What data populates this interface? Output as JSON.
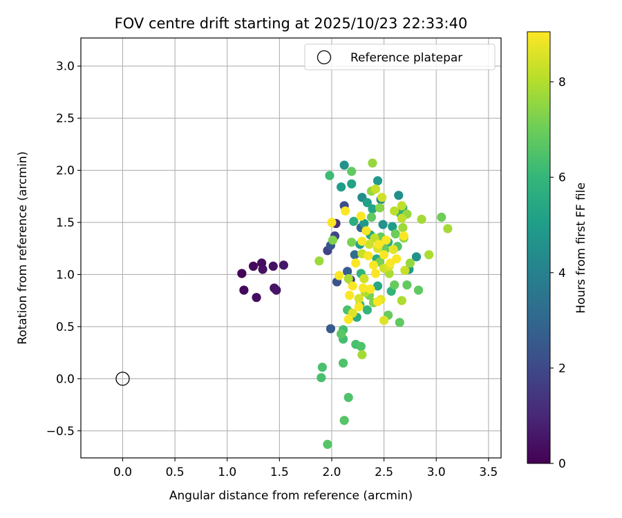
{
  "chart_data": {
    "type": "scatter",
    "title": "FOV centre drift starting at 2025/10/23 22:33:40",
    "xlabel": "Angular distance from reference (arcmin)",
    "ylabel": "Rotation from reference (arcmin)",
    "xlim": [
      -0.4,
      3.62
    ],
    "ylim": [
      -0.76,
      3.27
    ],
    "xticks": [
      0.0,
      0.5,
      1.0,
      1.5,
      2.0,
      2.5,
      3.0,
      3.5
    ],
    "xtick_labels": [
      "0.0",
      "0.5",
      "1.0",
      "1.5",
      "2.0",
      "2.5",
      "3.0",
      "3.5"
    ],
    "yticks": [
      -0.5,
      0.0,
      0.5,
      1.0,
      1.5,
      2.0,
      2.5,
      3.0
    ],
    "ytick_labels": [
      "−0.5",
      "0.0",
      "0.5",
      "1.0",
      "1.5",
      "2.0",
      "2.5",
      "3.0"
    ],
    "grid": true,
    "legend": {
      "placement": "top-right",
      "entries": [
        "Reference platepar"
      ]
    },
    "reference_point": {
      "x": 0.0,
      "y": 0.0,
      "label": "Reference platepar"
    },
    "colorbar": {
      "label": "Hours from first FF file",
      "colormap": "viridis",
      "range": [
        0,
        9.05
      ],
      "ticks": [
        0,
        2,
        4,
        6,
        8
      ],
      "tick_labels": [
        "0",
        "2",
        "4",
        "6",
        "8"
      ]
    },
    "colormap_stops": [
      "#440154",
      "#482878",
      "#3e4a89",
      "#31688e",
      "#26828e",
      "#1f9e89",
      "#35b779",
      "#6ece58",
      "#b5de2b",
      "#fde725"
    ],
    "points": [
      {
        "x": 1.14,
        "y": 1.01,
        "h": 0.1
      },
      {
        "x": 1.16,
        "y": 0.85,
        "h": 0.2
      },
      {
        "x": 1.25,
        "y": 1.08,
        "h": 0.2
      },
      {
        "x": 1.28,
        "y": 0.78,
        "h": 0.3
      },
      {
        "x": 1.33,
        "y": 1.11,
        "h": 0.3
      },
      {
        "x": 1.34,
        "y": 1.05,
        "h": 0.4
      },
      {
        "x": 1.44,
        "y": 1.08,
        "h": 0.4
      },
      {
        "x": 1.45,
        "y": 0.87,
        "h": 0.5
      },
      {
        "x": 1.47,
        "y": 0.85,
        "h": 0.5
      },
      {
        "x": 1.54,
        "y": 1.09,
        "h": 0.6
      },
      {
        "x": 1.96,
        "y": 1.23,
        "h": 1.8
      },
      {
        "x": 2.04,
        "y": 1.49,
        "h": 1.2
      },
      {
        "x": 2.03,
        "y": 1.37,
        "h": 1.9
      },
      {
        "x": 1.99,
        "y": 1.28,
        "h": 2.4
      },
      {
        "x": 1.99,
        "y": 0.48,
        "h": 2.5
      },
      {
        "x": 2.05,
        "y": 0.93,
        "h": 2.3
      },
      {
        "x": 2.12,
        "y": 1.66,
        "h": 2.1
      },
      {
        "x": 2.18,
        "y": 0.95,
        "h": 1.6
      },
      {
        "x": 2.15,
        "y": 1.03,
        "h": 2.7
      },
      {
        "x": 2.22,
        "y": 1.19,
        "h": 3.2
      },
      {
        "x": 2.28,
        "y": 1.45,
        "h": 2.8
      },
      {
        "x": 2.12,
        "y": 2.05,
        "h": 4.6
      },
      {
        "x": 2.09,
        "y": 1.84,
        "h": 5.0
      },
      {
        "x": 2.19,
        "y": 1.87,
        "h": 5.2
      },
      {
        "x": 2.29,
        "y": 1.74,
        "h": 4.4
      },
      {
        "x": 2.34,
        "y": 1.69,
        "h": 5.1
      },
      {
        "x": 2.44,
        "y": 1.9,
        "h": 4.9
      },
      {
        "x": 2.47,
        "y": 1.72,
        "h": 4.2
      },
      {
        "x": 2.39,
        "y": 1.63,
        "h": 5.3
      },
      {
        "x": 2.21,
        "y": 1.51,
        "h": 5.6
      },
      {
        "x": 2.31,
        "y": 1.49,
        "h": 4.8
      },
      {
        "x": 2.49,
        "y": 1.48,
        "h": 4.6
      },
      {
        "x": 2.58,
        "y": 1.46,
        "h": 5.0
      },
      {
        "x": 2.64,
        "y": 1.76,
        "h": 4.5
      },
      {
        "x": 2.68,
        "y": 1.64,
        "h": 5.7
      },
      {
        "x": 2.37,
        "y": 1.38,
        "h": 5.4
      },
      {
        "x": 2.54,
        "y": 1.31,
        "h": 5.8
      },
      {
        "x": 2.66,
        "y": 1.58,
        "h": 5.6
      },
      {
        "x": 2.81,
        "y": 1.17,
        "h": 4.6
      },
      {
        "x": 2.74,
        "y": 1.05,
        "h": 5.0
      },
      {
        "x": 2.28,
        "y": 1.01,
        "h": 5.9
      },
      {
        "x": 2.44,
        "y": 0.89,
        "h": 5.4
      },
      {
        "x": 2.57,
        "y": 0.84,
        "h": 5.9
      },
      {
        "x": 2.34,
        "y": 0.66,
        "h": 5.9
      },
      {
        "x": 2.24,
        "y": 0.59,
        "h": 5.6
      },
      {
        "x": 2.27,
        "y": 0.71,
        "h": 6.1
      },
      {
        "x": 2.27,
        "y": 1.29,
        "h": 5.1
      },
      {
        "x": 2.43,
        "y": 1.15,
        "h": 5.5
      },
      {
        "x": 1.98,
        "y": 1.95,
        "h": 6.2
      },
      {
        "x": 2.19,
        "y": 1.99,
        "h": 6.8
      },
      {
        "x": 2.15,
        "y": 0.66,
        "h": 6.4
      },
      {
        "x": 2.11,
        "y": 0.47,
        "h": 6.3
      },
      {
        "x": 2.09,
        "y": 0.43,
        "h": 6.7
      },
      {
        "x": 2.11,
        "y": 0.38,
        "h": 6.3
      },
      {
        "x": 2.23,
        "y": 0.33,
        "h": 6.4
      },
      {
        "x": 2.28,
        "y": 0.31,
        "h": 6.5
      },
      {
        "x": 1.91,
        "y": 0.11,
        "h": 6.4
      },
      {
        "x": 1.9,
        "y": 0.01,
        "h": 6.4
      },
      {
        "x": 2.11,
        "y": 0.15,
        "h": 6.5
      },
      {
        "x": 2.16,
        "y": -0.18,
        "h": 6.5
      },
      {
        "x": 2.12,
        "y": -0.4,
        "h": 6.6
      },
      {
        "x": 1.96,
        "y": -0.63,
        "h": 6.6
      },
      {
        "x": 2.54,
        "y": 0.61,
        "h": 6.9
      },
      {
        "x": 2.65,
        "y": 0.54,
        "h": 6.8
      },
      {
        "x": 2.72,
        "y": 0.9,
        "h": 6.8
      },
      {
        "x": 2.6,
        "y": 0.9,
        "h": 6.9
      },
      {
        "x": 2.83,
        "y": 0.85,
        "h": 6.8
      },
      {
        "x": 3.05,
        "y": 1.55,
        "h": 7.0
      },
      {
        "x": 2.01,
        "y": 1.33,
        "h": 7.3
      },
      {
        "x": 2.19,
        "y": 1.31,
        "h": 7.2
      },
      {
        "x": 2.38,
        "y": 1.55,
        "h": 6.8
      },
      {
        "x": 2.47,
        "y": 1.36,
        "h": 6.9
      },
      {
        "x": 2.63,
        "y": 1.27,
        "h": 6.6
      },
      {
        "x": 2.51,
        "y": 1.24,
        "h": 6.9
      },
      {
        "x": 2.61,
        "y": 1.39,
        "h": 7.0
      },
      {
        "x": 2.38,
        "y": 1.8,
        "h": 7.6
      },
      {
        "x": 2.39,
        "y": 2.07,
        "h": 7.6
      },
      {
        "x": 2.46,
        "y": 1.64,
        "h": 7.4
      },
      {
        "x": 2.46,
        "y": 1.12,
        "h": 7.2
      },
      {
        "x": 2.36,
        "y": 0.8,
        "h": 7.2
      },
      {
        "x": 2.4,
        "y": 0.73,
        "h": 7.3
      },
      {
        "x": 2.29,
        "y": 0.23,
        "h": 7.8
      },
      {
        "x": 1.88,
        "y": 1.13,
        "h": 7.7
      },
      {
        "x": 2.68,
        "y": 1.45,
        "h": 7.7
      },
      {
        "x": 2.69,
        "y": 1.35,
        "h": 7.4
      },
      {
        "x": 2.72,
        "y": 1.58,
        "h": 7.6
      },
      {
        "x": 2.75,
        "y": 1.11,
        "h": 7.6
      },
      {
        "x": 2.86,
        "y": 1.53,
        "h": 7.8
      },
      {
        "x": 2.93,
        "y": 1.19,
        "h": 7.9
      },
      {
        "x": 3.11,
        "y": 1.44,
        "h": 7.8
      },
      {
        "x": 2.67,
        "y": 0.75,
        "h": 7.9
      },
      {
        "x": 2.16,
        "y": 0.96,
        "h": 7.9
      },
      {
        "x": 2.32,
        "y": 0.83,
        "h": 8.0
      },
      {
        "x": 2.55,
        "y": 1.01,
        "h": 7.9
      },
      {
        "x": 2.6,
        "y": 1.61,
        "h": 8.1
      },
      {
        "x": 2.67,
        "y": 1.66,
        "h": 8.2
      },
      {
        "x": 2.42,
        "y": 1.82,
        "h": 8.3
      },
      {
        "x": 2.48,
        "y": 1.74,
        "h": 8.4
      },
      {
        "x": 2.29,
        "y": 1.2,
        "h": 8.3
      },
      {
        "x": 2.36,
        "y": 1.29,
        "h": 8.4
      },
      {
        "x": 2.41,
        "y": 1.35,
        "h": 8.2
      },
      {
        "x": 2.44,
        "y": 1.25,
        "h": 8.5
      },
      {
        "x": 2.5,
        "y": 1.06,
        "h": 8.4
      },
      {
        "x": 2.55,
        "y": 1.08,
        "h": 8.6
      },
      {
        "x": 2.31,
        "y": 0.96,
        "h": 8.4
      },
      {
        "x": 2.26,
        "y": 0.77,
        "h": 8.5
      },
      {
        "x": 2.2,
        "y": 0.63,
        "h": 8.6
      },
      {
        "x": 2.47,
        "y": 0.76,
        "h": 8.7
      },
      {
        "x": 2.5,
        "y": 0.56,
        "h": 8.6
      },
      {
        "x": 2.7,
        "y": 1.04,
        "h": 8.3
      },
      {
        "x": 2.67,
        "y": 1.54,
        "h": 8.2
      },
      {
        "x": 2.59,
        "y": 1.24,
        "h": 8.7
      },
      {
        "x": 2.16,
        "y": 0.57,
        "h": 9.0
      },
      {
        "x": 2.0,
        "y": 1.5,
        "h": 9.0
      },
      {
        "x": 2.13,
        "y": 1.61,
        "h": 9.0
      },
      {
        "x": 2.28,
        "y": 1.56,
        "h": 9.0
      },
      {
        "x": 2.33,
        "y": 1.42,
        "h": 8.9
      },
      {
        "x": 2.07,
        "y": 0.99,
        "h": 9.0
      },
      {
        "x": 2.17,
        "y": 0.8,
        "h": 9.0
      },
      {
        "x": 2.23,
        "y": 1.11,
        "h": 9.0
      },
      {
        "x": 2.29,
        "y": 1.32,
        "h": 9.0
      },
      {
        "x": 2.35,
        "y": 1.18,
        "h": 9.0
      },
      {
        "x": 2.4,
        "y": 1.09,
        "h": 9.0
      },
      {
        "x": 2.45,
        "y": 1.29,
        "h": 9.0
      },
      {
        "x": 2.5,
        "y": 1.19,
        "h": 9.0
      },
      {
        "x": 2.52,
        "y": 1.33,
        "h": 9.0
      },
      {
        "x": 2.62,
        "y": 1.15,
        "h": 9.0
      },
      {
        "x": 2.69,
        "y": 1.37,
        "h": 9.0
      },
      {
        "x": 2.3,
        "y": 0.87,
        "h": 9.0
      },
      {
        "x": 2.37,
        "y": 0.86,
        "h": 9.0
      },
      {
        "x": 2.44,
        "y": 0.74,
        "h": 9.0
      },
      {
        "x": 2.26,
        "y": 0.69,
        "h": 9.0
      },
      {
        "x": 2.2,
        "y": 0.89,
        "h": 9.0
      },
      {
        "x": 2.42,
        "y": 1.01,
        "h": 9.0
      },
      {
        "x": 2.56,
        "y": 1.11,
        "h": 9.0
      }
    ]
  }
}
